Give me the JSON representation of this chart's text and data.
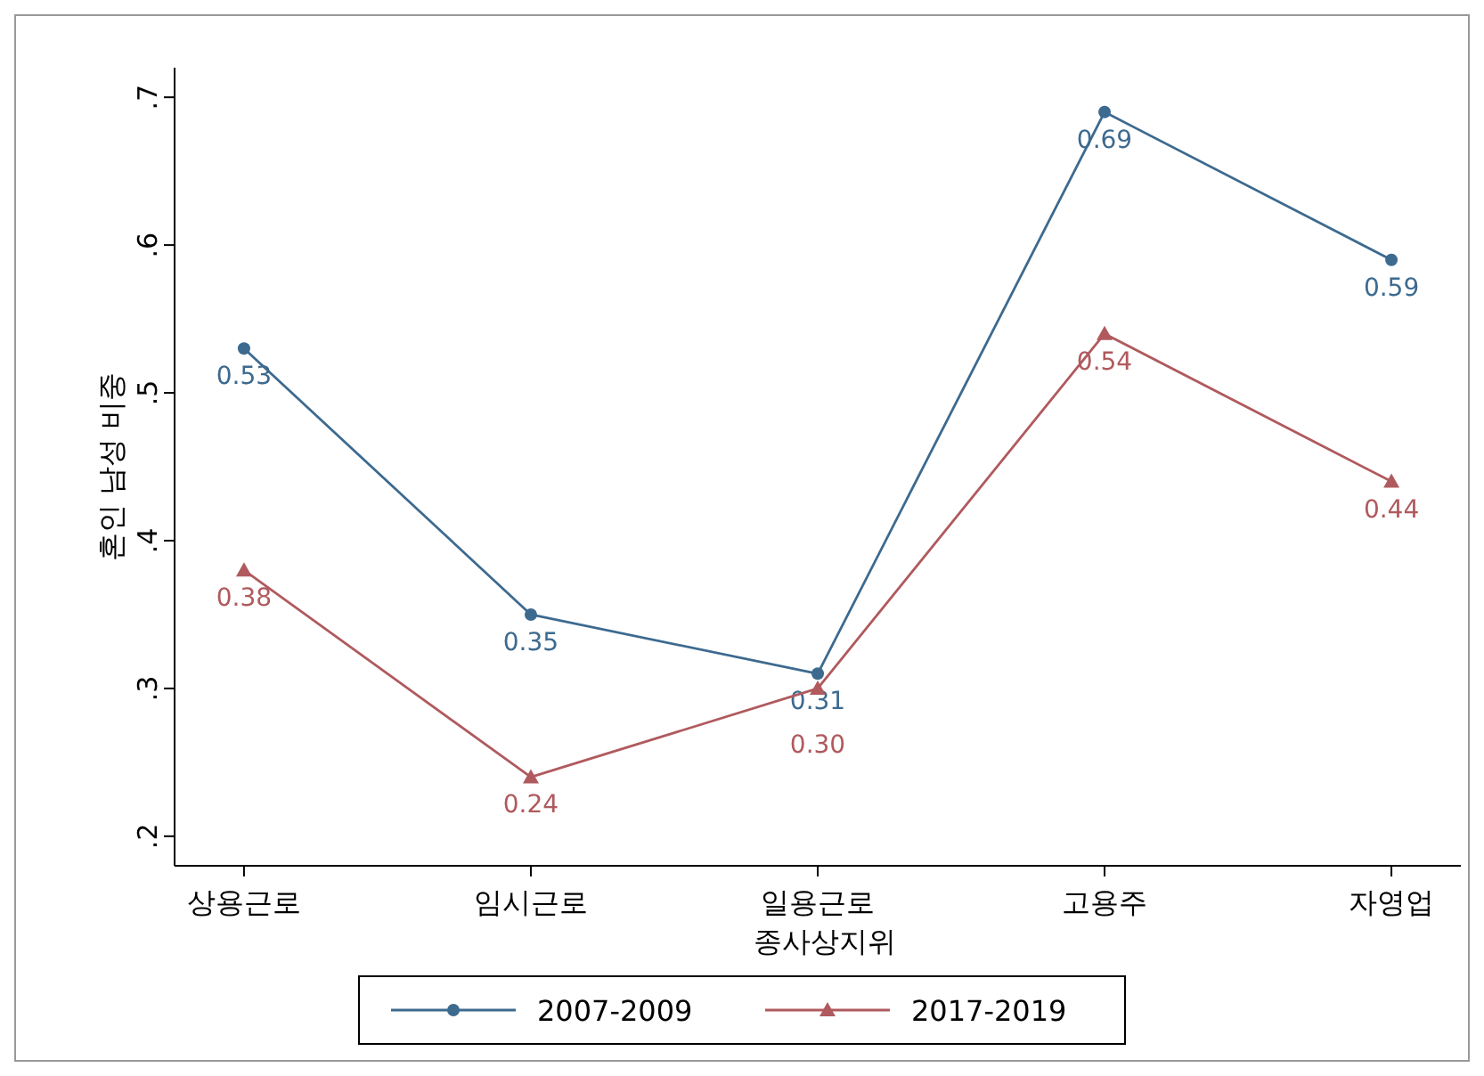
{
  "chart_data": {
    "type": "line",
    "xlabel": "종사상지위",
    "ylabel": "혼인 남성 비중",
    "categories": [
      "상용근로",
      "임시근로",
      "일용근로",
      "고용주",
      "자영업"
    ],
    "series": [
      {
        "name": "2007-2009",
        "color": "#3d6a8f",
        "marker": "circle",
        "values": [
          0.53,
          0.35,
          0.31,
          0.69,
          0.59
        ],
        "value_labels": [
          "0.53",
          "0.35",
          "0.31",
          "0.69",
          "0.59"
        ]
      },
      {
        "name": "2017-2019",
        "color": "#b05a5e",
        "marker": "triangle",
        "values": [
          0.38,
          0.24,
          0.3,
          0.54,
          0.44
        ],
        "value_labels": [
          "0.38",
          "0.24",
          "0.30",
          "0.54",
          "0.44"
        ]
      }
    ],
    "ylim": [
      0.18,
      0.72
    ],
    "yticks": [
      {
        "value": 0.2,
        "label": ".2"
      },
      {
        "value": 0.3,
        "label": ".3"
      },
      {
        "value": 0.4,
        "label": ".4"
      },
      {
        "value": 0.5,
        "label": ".5"
      },
      {
        "value": 0.6,
        "label": ".6"
      },
      {
        "value": 0.7,
        "label": ".7"
      }
    ],
    "grid": false,
    "legend": "bottom"
  }
}
